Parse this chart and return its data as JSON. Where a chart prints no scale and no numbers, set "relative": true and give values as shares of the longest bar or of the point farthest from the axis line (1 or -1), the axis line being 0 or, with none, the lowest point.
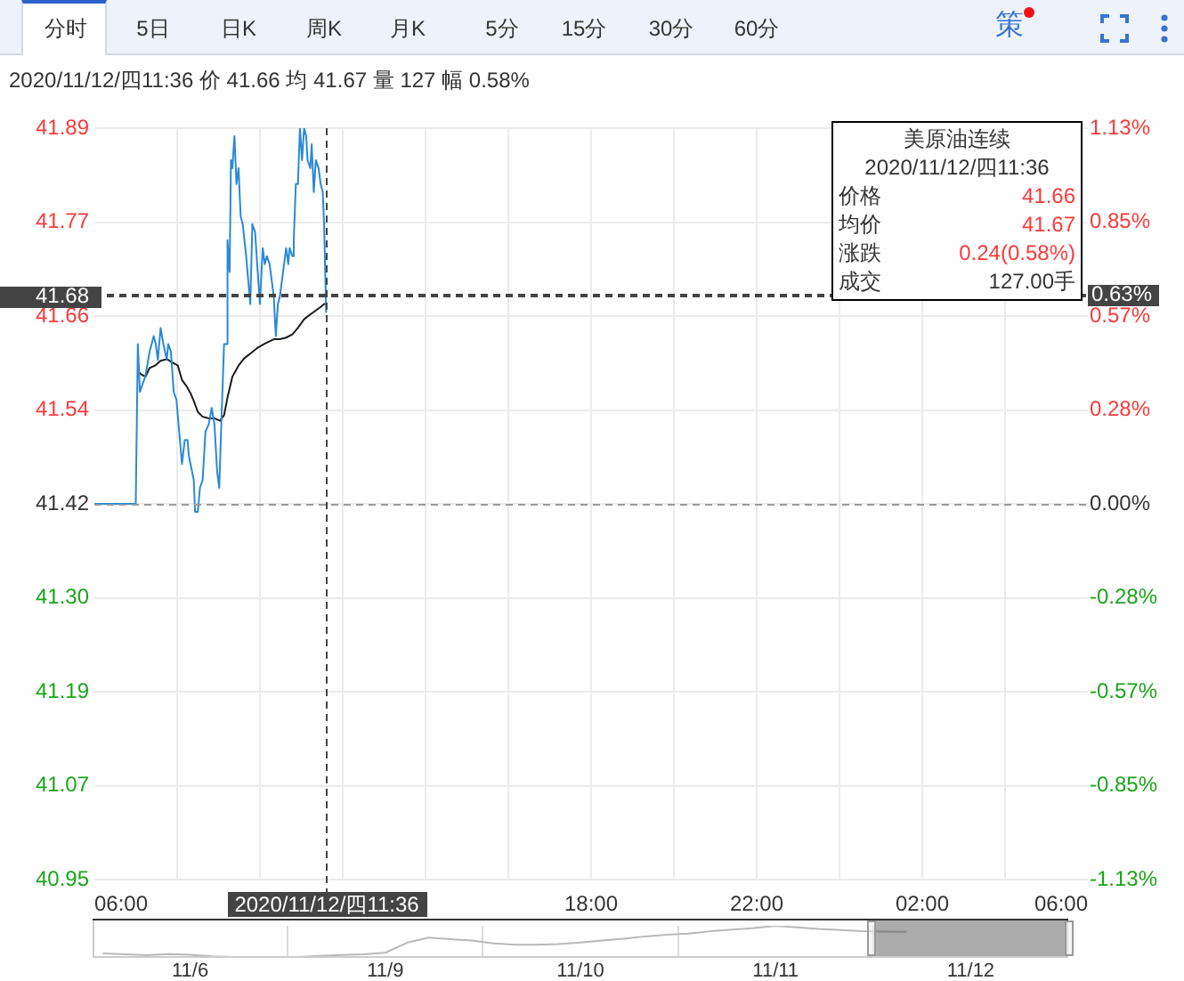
{
  "chart_data": [
    {
      "type": "other",
      "annotations": [
        "分时",
        "5日",
        "日K",
        "周K",
        "月K",
        "5分",
        "15分",
        "30分",
        "60分",
        "策"
      ]
    },
    {
      "type": "line",
      "title": "美原油连续",
      "subtitle": "2020/11/12/四11:36 价 41.66 均 41.67 量 127 幅 0.58%",
      "annotations": [
        "2020/11/12/四11:36",
        "价格",
        "41.66",
        "均价",
        "41.67",
        "涨跌",
        "0.24(0.58%)",
        "成交",
        "127.00手"
      ],
      "series": [
        {
          "color": "#2a89d6",
          "x": [
            "2020-11-12T06:00",
            "2020-11-12T07:00",
            "2020-11-12T07:03",
            "2020-11-12T07:06",
            "2020-11-12T07:10",
            "2020-11-12T07:14",
            "2020-11-12T07:20",
            "2020-11-12T07:26",
            "2020-11-12T07:29",
            "2020-11-12T07:32",
            "2020-11-12T07:36",
            "2020-11-12T07:40",
            "2020-11-12T07:45",
            "2020-11-12T07:47",
            "2020-11-12T07:51",
            "2020-11-12T07:55",
            "2020-11-12T07:59",
            "2020-11-12T08:04",
            "2020-11-12T08:07",
            "2020-11-12T08:11",
            "2020-11-12T08:15",
            "2020-11-12T08:17",
            "2020-11-12T08:24",
            "2020-11-12T08:26",
            "2020-11-12T08:30",
            "2020-11-12T08:33",
            "2020-11-12T08:37",
            "2020-11-12T08:41",
            "2020-11-12T08:46",
            "2020-11-12T08:50",
            "2020-11-12T08:54",
            "2020-11-12T08:58",
            "2020-11-12T09:01",
            "2020-11-12T09:04",
            "2020-11-12T09:08",
            "2020-11-12T09:11",
            "2020-11-12T09:13",
            "2020-11-12T09:16",
            "2020-11-12T09:18",
            "2020-11-12T09:20",
            "2020-11-12T09:23",
            "2020-11-12T09:26",
            "2020-11-12T09:29",
            "2020-11-12T09:32",
            "2020-11-12T09:35",
            "2020-11-12T09:40",
            "2020-11-12T09:43",
            "2020-11-12T09:46",
            "2020-11-12T09:49",
            "2020-11-12T09:53",
            "2020-11-12T09:56",
            "2020-11-12T10:00",
            "2020-11-12T10:04",
            "2020-11-12T10:07",
            "2020-11-12T10:10",
            "2020-11-12T10:14",
            "2020-11-12T10:17",
            "2020-11-12T10:20",
            "2020-11-12T10:23",
            "2020-11-12T10:26",
            "2020-11-12T10:29",
            "2020-11-12T10:32",
            "2020-11-12T10:35",
            "2020-11-12T10:38",
            "2020-11-12T10:41",
            "2020-11-12T10:43",
            "2020-11-12T10:47",
            "2020-11-12T10:49",
            "2020-11-12T10:52",
            "2020-11-12T10:55",
            "2020-11-12T10:58",
            "2020-11-12T11:01",
            "2020-11-12T11:04",
            "2020-11-12T11:07",
            "2020-11-12T11:09",
            "2020-11-12T11:13",
            "2020-11-12T11:15",
            "2020-11-12T11:18",
            "2020-11-12T11:21",
            "2020-11-12T11:25",
            "2020-11-12T11:28",
            "2020-11-12T11:31",
            "2020-11-12T11:33",
            "2020-11-12T11:36"
          ],
          "values": [
            41.42,
            41.42,
            41.62,
            41.56,
            41.57,
            41.58,
            41.61,
            41.63,
            41.62,
            41.6,
            41.64,
            41.62,
            41.6,
            41.62,
            41.61,
            41.56,
            41.55,
            41.5,
            41.47,
            41.5,
            41.5,
            41.48,
            41.45,
            41.41,
            41.41,
            41.44,
            41.45,
            41.51,
            41.52,
            41.54,
            41.52,
            41.46,
            41.44,
            41.52,
            41.62,
            41.62,
            41.75,
            41.71,
            41.85,
            41.84,
            41.88,
            41.82,
            41.84,
            41.78,
            41.77,
            41.73,
            41.7,
            41.67,
            41.77,
            41.76,
            41.72,
            41.67,
            41.74,
            41.72,
            41.73,
            41.72,
            41.7,
            41.68,
            41.63,
            41.67,
            41.68,
            41.7,
            41.72,
            41.74,
            41.72,
            41.74,
            41.73,
            41.75,
            41.82,
            41.82,
            41.89,
            41.85,
            41.89,
            41.88,
            41.85,
            41.84,
            41.87,
            41.81,
            41.85,
            41.84,
            41.82,
            41.81,
            41.77,
            41.66
          ]
        },
        {
          "color": "#1a1a1a",
          "x": [
            "2020-11-12T07:03",
            "2020-11-12T07:08",
            "2020-11-12T07:14",
            "2020-11-12T07:20",
            "2020-11-12T07:28",
            "2020-11-12T07:36",
            "2020-11-12T07:45",
            "2020-11-12T07:53",
            "2020-11-12T08:01",
            "2020-11-12T08:07",
            "2020-11-12T08:13",
            "2020-11-12T08:19",
            "2020-11-12T08:24",
            "2020-11-12T08:30",
            "2020-11-12T08:37",
            "2020-11-12T08:46",
            "2020-11-12T08:54",
            "2020-11-12T09:02",
            "2020-11-12T09:08",
            "2020-11-12T09:13",
            "2020-11-12T09:20",
            "2020-11-12T09:29",
            "2020-11-12T09:37",
            "2020-11-12T09:46",
            "2020-11-12T09:56",
            "2020-11-12T10:08",
            "2020-11-12T10:20",
            "2020-11-12T10:29",
            "2020-11-12T10:38",
            "2020-11-12T10:47",
            "2020-11-12T10:55",
            "2020-11-12T11:04",
            "2020-11-12T11:13",
            "2020-11-12T11:21",
            "2020-11-12T11:29",
            "2020-11-12T11:33",
            "2020-11-12T11:36"
          ],
          "values": [
            41.586,
            41.582,
            41.579,
            41.59,
            41.593,
            41.599,
            41.601,
            41.597,
            41.593,
            41.575,
            41.568,
            41.559,
            41.549,
            41.535,
            41.529,
            41.527,
            41.527,
            41.524,
            41.531,
            41.553,
            41.579,
            41.593,
            41.602,
            41.608,
            41.615,
            41.621,
            41.626,
            41.626,
            41.628,
            41.632,
            41.64,
            41.651,
            41.657,
            41.662,
            41.667,
            41.67,
            41.67
          ]
        }
      ],
      "xlim": [
        "2020-11-12T06:00",
        "2020-11-13T06:00"
      ],
      "xticks": [
        {
          "value": "2020-11-12T06:00",
          "label": "06:00"
        },
        {
          "value": "2020-11-12T08:00",
          "label": null
        },
        {
          "value": "2020-11-12T10:00",
          "label": null
        },
        {
          "value": "2020-11-12T12:00",
          "label": null
        },
        {
          "value": "2020-11-12T14:00",
          "label": null
        },
        {
          "value": "2020-11-12T16:00",
          "label": null
        },
        {
          "value": "2020-11-12T18:00",
          "label": "18:00"
        },
        {
          "value": "2020-11-12T20:00",
          "label": null
        },
        {
          "value": "2020-11-12T22:00",
          "label": "22:00"
        },
        {
          "value": "2020-11-13T00:00",
          "label": null
        },
        {
          "value": "2020-11-13T02:00",
          "label": "02:00"
        },
        {
          "value": "2020-11-13T04:00",
          "label": null
        },
        {
          "value": "2020-11-13T06:00",
          "label": "06:00"
        }
      ],
      "ylim": [
        40.95,
        41.89
      ],
      "yticks": [
        40.95,
        {
          "value": 41.0675,
          "label": "41.07"
        },
        {
          "value": 41.185,
          "label": "41.19"
        },
        {
          "value": 41.3025,
          "label": "41.30"
        },
        41.42,
        {
          "value": 41.5375,
          "label": "41.54"
        },
        {
          "value": 41.655,
          "label": "41.66"
        },
        {
          "value": 41.7725,
          "label": "41.77"
        },
        41.89
      ],
      "y2lim": [
        -1.13,
        1.13
      ],
      "y2ticks": [
        {
          "value": -1.13,
          "label": "-1.13%"
        },
        {
          "value": -0.8475,
          "label": "-0.85%"
        },
        {
          "value": -0.565,
          "label": "-0.57%"
        },
        {
          "value": -0.2825,
          "label": "-0.28%"
        },
        {
          "value": 0,
          "label": "0.00%"
        },
        {
          "value": 0.2825,
          "label": "0.28%"
        },
        {
          "value": 0.565,
          "label": "0.57%"
        },
        {
          "value": 0.8475,
          "label": "0.85%"
        },
        {
          "value": 1.13,
          "label": "1.13%"
        }
      ],
      "ref_lines": [
        {
          "axis": "y2",
          "value": 0,
          "color": "#999999",
          "line_style": "dashed"
        },
        {
          "axis": "y",
          "value": 41.68,
          "label": "41.68",
          "color": "#444444",
          "line_style": "dashed"
        },
        {
          "axis": "y2",
          "value": 0.63,
          "label": "0.63%",
          "color": "#444444",
          "line_style": "dashed"
        },
        {
          "axis": "x",
          "value": "2020-11-12T11:36",
          "label": "2020/11/12/四11:36",
          "color": "#444444",
          "line_style": "dashed"
        }
      ],
      "grid": true,
      "marker": "none"
    },
    {
      "type": "line",
      "relative": true,
      "color": "#b8b8b8",
      "categories": [
        null,
        null,
        null,
        null,
        "11/6",
        null,
        null,
        null,
        null,
        null,
        null,
        null,
        null,
        "11/9",
        null,
        null,
        null,
        null,
        null,
        null,
        null,
        null,
        "11/10",
        null,
        null,
        null,
        null,
        null,
        null,
        null,
        null,
        "11/11",
        null,
        null,
        null,
        null,
        null,
        null,
        null,
        null,
        "11/12",
        null,
        null,
        null,
        null
      ],
      "values": [
        0.14,
        0.11,
        0.08,
        0.12,
        0.1,
        0.05,
        0.03,
        0.03,
        0.02,
        0.03,
        0.06,
        0.09,
        0.11,
        0.16,
        0.47,
        0.63,
        0.58,
        0.54,
        0.45,
        0.41,
        0.41,
        0.43,
        0.48,
        0.54,
        0.6,
        0.67,
        0.72,
        0.76,
        0.83,
        0.88,
        0.93,
        1,
        0.95,
        0.9,
        0.87,
        0.83,
        0.82,
        0.81,
        null,
        null,
        null,
        null,
        null,
        null,
        null
      ],
      "grid": "x",
      "tick_labels": "x",
      "marker": "none"
    }
  ]
}
